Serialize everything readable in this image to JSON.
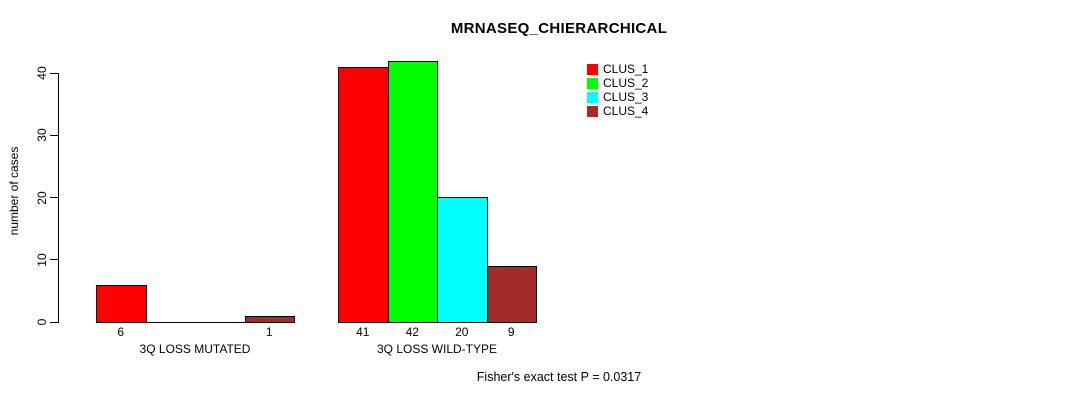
{
  "chart_data": {
    "type": "bar",
    "title": "MRNASEQ_CHIERARCHICAL",
    "ylabel": "number of cases",
    "xlabel": "",
    "ylim": [
      0,
      40
    ],
    "yticks": [
      0,
      10,
      20,
      30,
      40
    ],
    "grid": false,
    "legend_position": "top-right",
    "series": [
      {
        "name": "CLUS_1",
        "color": "#FF0000"
      },
      {
        "name": "CLUS_2",
        "color": "#00FF00"
      },
      {
        "name": "CLUS_3",
        "color": "#00FFFF"
      },
      {
        "name": "CLUS_4",
        "color": "#A52A2A"
      }
    ],
    "categories": [
      "3Q LOSS MUTATED",
      "3Q LOSS WILD-TYPE"
    ],
    "groups": [
      {
        "category": "3Q LOSS MUTATED",
        "values": [
          6,
          0,
          0,
          1
        ],
        "bar_labels": [
          "6",
          "",
          "",
          "1"
        ]
      },
      {
        "category": "3Q LOSS WILD-TYPE",
        "values": [
          41,
          42,
          20,
          9
        ],
        "bar_labels": [
          "41",
          "42",
          "20",
          "9"
        ]
      }
    ],
    "footnote": "Fisher's exact test P = 0.0317"
  },
  "colors": {
    "background": "#FFFFFF",
    "axis": "#000000",
    "text": "#000000"
  }
}
